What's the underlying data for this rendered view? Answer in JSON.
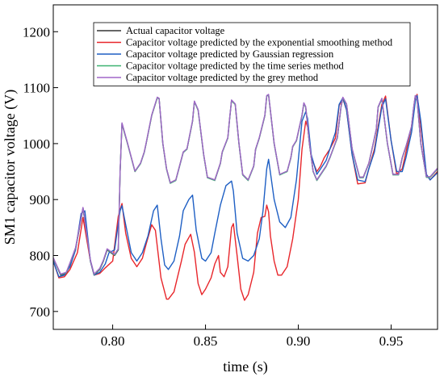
{
  "chart_data": {
    "type": "line",
    "xlabel": "time (s)",
    "ylabel": "SM1 capacitor voltage (V)",
    "xlim": [
      0.768,
      0.975
    ],
    "ylim": [
      668,
      1248
    ],
    "xticks": [
      0.8,
      0.85,
      0.9,
      0.95
    ],
    "yticks": [
      700,
      800,
      900,
      1000,
      1100,
      1200
    ],
    "xtick_labels": [
      "0.80",
      "0.85",
      "0.90",
      "0.95"
    ],
    "ytick_labels": [
      "700",
      "800",
      "900",
      "1000",
      "1100",
      "1200"
    ],
    "grid": false,
    "legend_position": "top-right",
    "series": [
      {
        "name": "Actual capacitor voltage",
        "color": "#333333",
        "x": [
          0.768,
          0.772,
          0.775,
          0.777,
          0.78,
          0.783,
          0.784,
          0.788,
          0.79,
          0.793,
          0.795,
          0.797,
          0.801,
          0.803,
          0.804,
          0.805,
          0.808,
          0.812,
          0.815,
          0.817,
          0.818,
          0.821,
          0.824,
          0.825,
          0.827,
          0.829,
          0.831,
          0.834,
          0.836,
          0.838,
          0.84,
          0.843,
          0.844,
          0.846,
          0.849,
          0.851,
          0.855,
          0.858,
          0.859,
          0.862,
          0.863,
          0.864,
          0.866,
          0.868,
          0.87,
          0.873,
          0.876,
          0.877,
          0.879,
          0.882,
          0.883,
          0.884,
          0.887,
          0.89,
          0.894,
          0.896,
          0.897,
          0.899,
          0.902,
          0.903,
          0.904,
          0.906,
          0.908,
          0.91,
          0.915,
          0.917,
          0.921,
          0.923,
          0.924,
          0.926,
          0.929,
          0.933,
          0.935,
          0.938,
          0.94,
          0.942,
          0.943,
          0.945,
          0.948,
          0.951,
          0.954,
          0.956,
          0.958,
          0.961,
          0.962,
          0.963,
          0.964,
          0.966,
          0.969,
          0.971,
          0.975
        ],
        "values": [
          795,
          765,
          768,
          785,
          812,
          865,
          885,
          790,
          765,
          775,
          790,
          810,
          800,
          810,
          950,
          1035,
          1000,
          950,
          965,
          985,
          1000,
          1050,
          1082,
          1080,
          1000,
          955,
          930,
          935,
          960,
          985,
          990,
          1040,
          1075,
          1060,
          980,
          940,
          935,
          965,
          985,
          1010,
          1045,
          1077,
          1070,
          1000,
          945,
          935,
          960,
          990,
          1010,
          1050,
          1085,
          1087,
          1000,
          945,
          950,
          975,
          995,
          1005,
          1050,
          1072,
          1065,
          1000,
          950,
          935,
          960,
          975,
          1010,
          1065,
          1082,
          1070,
          990,
          940,
          940,
          965,
          995,
          1025,
          1065,
          1080,
          1000,
          945,
          945,
          975,
          995,
          1030,
          1060,
          1085,
          1078,
          1000,
          940,
          940,
          955
        ]
      },
      {
        "name": "Capacitor voltage predicted by the exponential smoothing method",
        "color": "#e8262b",
        "x": [
          0.768,
          0.771,
          0.774,
          0.777,
          0.781,
          0.784,
          0.788,
          0.79,
          0.793,
          0.796,
          0.8,
          0.803,
          0.805,
          0.807,
          0.81,
          0.813,
          0.816,
          0.818,
          0.821,
          0.823,
          0.826,
          0.829,
          0.83,
          0.833,
          0.837,
          0.839,
          0.842,
          0.844,
          0.846,
          0.848,
          0.85,
          0.853,
          0.855,
          0.857,
          0.858,
          0.86,
          0.862,
          0.864,
          0.865,
          0.867,
          0.869,
          0.871,
          0.873,
          0.876,
          0.878,
          0.88,
          0.882,
          0.883,
          0.884,
          0.885,
          0.887,
          0.889,
          0.891,
          0.894,
          0.897,
          0.9,
          0.902,
          0.904,
          0.905,
          0.907,
          0.91,
          0.912,
          0.914,
          0.917,
          0.92,
          0.922,
          0.924,
          0.926,
          0.929,
          0.932,
          0.936,
          0.938,
          0.941,
          0.943,
          0.945,
          0.947,
          0.95,
          0.953,
          0.956,
          0.958,
          0.961,
          0.963,
          0.964,
          0.966,
          0.969,
          0.971,
          0.975
        ],
        "values": [
          790,
          760,
          762,
          775,
          805,
          868,
          790,
          765,
          768,
          778,
          790,
          870,
          893,
          840,
          795,
          780,
          795,
          820,
          855,
          845,
          760,
          722,
          722,
          735,
          790,
          820,
          838,
          806,
          750,
          730,
          740,
          760,
          785,
          800,
          770,
          762,
          780,
          850,
          857,
          800,
          740,
          720,
          730,
          770,
          840,
          868,
          870,
          890,
          878,
          835,
          790,
          765,
          765,
          780,
          830,
          900,
          990,
          1040,
          1030,
          975,
          950,
          960,
          975,
          990,
          1010,
          1068,
          1080,
          1060,
          980,
          928,
          930,
          955,
          990,
          1030,
          1070,
          1085,
          1005,
          945,
          955,
          985,
          1030,
          1080,
          1088,
          1030,
          945,
          935,
          950
        ]
      },
      {
        "name": "Capacitor voltage predicted by Gaussian regression",
        "color": "#1e5fc4",
        "x": [
          0.768,
          0.771,
          0.774,
          0.777,
          0.78,
          0.783,
          0.785,
          0.788,
          0.79,
          0.793,
          0.796,
          0.798,
          0.801,
          0.804,
          0.805,
          0.807,
          0.81,
          0.813,
          0.816,
          0.819,
          0.822,
          0.824,
          0.826,
          0.828,
          0.83,
          0.833,
          0.836,
          0.838,
          0.841,
          0.843,
          0.845,
          0.848,
          0.85,
          0.853,
          0.855,
          0.858,
          0.861,
          0.864,
          0.865,
          0.867,
          0.87,
          0.873,
          0.876,
          0.879,
          0.881,
          0.883,
          0.884,
          0.887,
          0.89,
          0.893,
          0.896,
          0.899,
          0.902,
          0.904,
          0.905,
          0.907,
          0.91,
          0.912,
          0.915,
          0.917,
          0.92,
          0.922,
          0.924,
          0.926,
          0.929,
          0.932,
          0.936,
          0.938,
          0.941,
          0.943,
          0.945,
          0.947,
          0.95,
          0.953,
          0.956,
          0.958,
          0.961,
          0.963,
          0.964,
          0.966,
          0.969,
          0.971,
          0.975
        ],
        "values": [
          790,
          762,
          765,
          780,
          810,
          875,
          880,
          790,
          765,
          770,
          785,
          805,
          810,
          880,
          889,
          855,
          805,
          790,
          805,
          835,
          880,
          890,
          830,
          783,
          775,
          790,
          835,
          880,
          900,
          908,
          845,
          795,
          790,
          805,
          840,
          890,
          925,
          933,
          915,
          840,
          795,
          790,
          800,
          830,
          880,
          955,
          972,
          900,
          860,
          850,
          868,
          935,
          1040,
          1057,
          1045,
          980,
          945,
          955,
          970,
          990,
          1020,
          1070,
          1082,
          1060,
          980,
          935,
          932,
          955,
          985,
          1025,
          1065,
          1080,
          1005,
          950,
          950,
          975,
          1020,
          1075,
          1086,
          1040,
          945,
          935,
          948
        ]
      },
      {
        "name": "Capacitor voltage predicted by the time series method",
        "color": "#3cb371",
        "x": [
          0.768,
          0.772,
          0.775,
          0.777,
          0.78,
          0.783,
          0.784,
          0.788,
          0.79,
          0.793,
          0.795,
          0.797,
          0.801,
          0.803,
          0.804,
          0.805,
          0.808,
          0.812,
          0.815,
          0.817,
          0.818,
          0.821,
          0.824,
          0.825,
          0.827,
          0.829,
          0.831,
          0.834,
          0.836,
          0.838,
          0.84,
          0.843,
          0.844,
          0.846,
          0.849,
          0.851,
          0.855,
          0.858,
          0.859,
          0.862,
          0.863,
          0.864,
          0.866,
          0.868,
          0.87,
          0.873,
          0.876,
          0.877,
          0.879,
          0.882,
          0.883,
          0.884,
          0.887,
          0.89,
          0.894,
          0.896,
          0.897,
          0.899,
          0.902,
          0.903,
          0.904,
          0.906,
          0.908,
          0.91,
          0.915,
          0.917,
          0.921,
          0.923,
          0.924,
          0.926,
          0.929,
          0.933,
          0.935,
          0.938,
          0.94,
          0.942,
          0.943,
          0.945,
          0.948,
          0.951,
          0.954,
          0.956,
          0.958,
          0.961,
          0.962,
          0.963,
          0.964,
          0.966,
          0.969,
          0.971,
          0.975
        ],
        "values": [
          795,
          766,
          769,
          786,
          813,
          866,
          885,
          791,
          766,
          776,
          791,
          811,
          801,
          811,
          950,
          1036,
          1000,
          950,
          964,
          984,
          1000,
          1050,
          1082,
          1080,
          1000,
          954,
          929,
          934,
          959,
          984,
          990,
          1040,
          1075,
          1060,
          980,
          939,
          934,
          964,
          984,
          1010,
          1045,
          1077,
          1070,
          1000,
          944,
          934,
          959,
          989,
          1010,
          1050,
          1085,
          1087,
          1000,
          944,
          950,
          974,
          994,
          1005,
          1050,
          1072,
          1065,
          1000,
          950,
          934,
          959,
          974,
          1010,
          1065,
          1082,
          1070,
          990,
          939,
          939,
          964,
          994,
          1025,
          1065,
          1080,
          1000,
          944,
          944,
          974,
          994,
          1030,
          1060,
          1085,
          1078,
          1000,
          940,
          940,
          955
        ]
      },
      {
        "name": "Capacitor voltage predicted by the grey method",
        "color": "#a066c8",
        "x": [
          0.768,
          0.772,
          0.775,
          0.777,
          0.78,
          0.783,
          0.784,
          0.788,
          0.79,
          0.793,
          0.795,
          0.797,
          0.801,
          0.803,
          0.804,
          0.805,
          0.808,
          0.812,
          0.815,
          0.817,
          0.818,
          0.821,
          0.824,
          0.825,
          0.827,
          0.829,
          0.831,
          0.834,
          0.836,
          0.838,
          0.84,
          0.843,
          0.844,
          0.846,
          0.849,
          0.851,
          0.855,
          0.858,
          0.859,
          0.862,
          0.863,
          0.864,
          0.866,
          0.868,
          0.87,
          0.873,
          0.876,
          0.877,
          0.879,
          0.882,
          0.883,
          0.884,
          0.887,
          0.89,
          0.894,
          0.896,
          0.897,
          0.899,
          0.902,
          0.903,
          0.904,
          0.906,
          0.908,
          0.91,
          0.915,
          0.917,
          0.921,
          0.923,
          0.924,
          0.926,
          0.929,
          0.933,
          0.935,
          0.938,
          0.94,
          0.942,
          0.943,
          0.945,
          0.948,
          0.951,
          0.954,
          0.956,
          0.958,
          0.961,
          0.962,
          0.963,
          0.964,
          0.966,
          0.969,
          0.971,
          0.975
        ],
        "values": [
          796,
          767,
          770,
          787,
          814,
          867,
          886,
          792,
          767,
          777,
          792,
          812,
          802,
          812,
          951,
          1037,
          1001,
          951,
          965,
          985,
          1001,
          1051,
          1083,
          1081,
          1001,
          955,
          930,
          935,
          960,
          985,
          991,
          1041,
          1076,
          1061,
          981,
          940,
          935,
          965,
          985,
          1011,
          1046,
          1078,
          1071,
          1001,
          945,
          935,
          960,
          990,
          1011,
          1051,
          1086,
          1088,
          1001,
          945,
          951,
          975,
          995,
          1006,
          1051,
          1073,
          1066,
          1001,
          951,
          935,
          960,
          975,
          1011,
          1066,
          1083,
          1071,
          991,
          940,
          940,
          965,
          995,
          1026,
          1066,
          1081,
          1001,
          945,
          945,
          975,
          995,
          1031,
          1061,
          1086,
          1079,
          1001,
          941,
          941,
          956
        ]
      }
    ]
  }
}
